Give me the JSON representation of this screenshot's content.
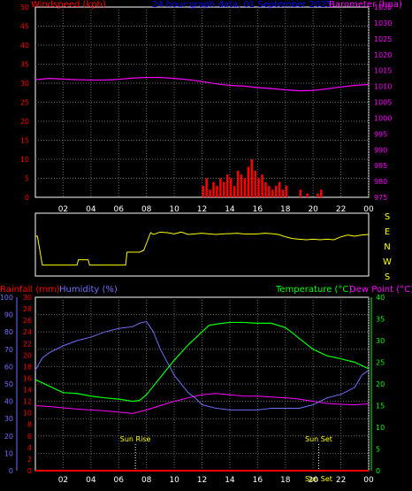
{
  "colors": {
    "wind": "#ff0000",
    "barometer": "#ff00ff",
    "title": "#0000ff",
    "direction": "#ffff00",
    "rain": "#ff0000",
    "humidity": "#7070ff",
    "temperature": "#00ff00",
    "dewpoint": "#ff00ff",
    "sun": "#ffffff",
    "axis": "#ffffff",
    "grid": "#6a6a6a"
  },
  "chart_data": [
    {
      "type": "line",
      "id": "wind_pressure",
      "title": "24 hour graph data, 01 September 2025",
      "ylabel_left": "Windspeed (kph)",
      "ylabel_right": "Barometer (hpa)",
      "x_ticks": [
        "02",
        "04",
        "06",
        "08",
        "10",
        "12",
        "14",
        "16",
        "18",
        "20",
        "22",
        "00"
      ],
      "y_left_ticks": [
        "0",
        "5",
        "10",
        "15",
        "20",
        "25",
        "30",
        "35",
        "40",
        "45",
        "50"
      ],
      "y_right_ticks": [
        "975",
        "980",
        "985",
        "990",
        "995",
        "1000",
        "1005",
        "1010",
        "1015",
        "1020",
        "1025",
        "1030",
        "1035"
      ],
      "ylim_left": [
        0,
        50
      ],
      "ylim_right": [
        975,
        1035
      ],
      "grid": true,
      "series": [
        {
          "name": "Barometer",
          "axis": "right",
          "x": [
            0,
            1,
            2,
            3,
            4,
            5,
            6,
            7,
            8,
            9,
            10,
            11,
            12,
            13,
            14,
            15,
            16,
            17,
            18,
            19,
            20,
            21,
            22,
            23,
            24
          ],
          "values": [
            1012.1,
            1012.5,
            1012.3,
            1012.1,
            1012.0,
            1012.0,
            1012.2,
            1012.6,
            1012.8,
            1012.8,
            1012.5,
            1012.1,
            1011.5,
            1010.8,
            1010.3,
            1010.1,
            1009.6,
            1009.3,
            1008.9,
            1008.6,
            1008.7,
            1009.2,
            1009.8,
            1010.3,
            1010.6
          ]
        },
        {
          "name": "Windspeed",
          "axis": "left",
          "type": "bar",
          "x": [
            12.0,
            12.25,
            12.5,
            12.75,
            13.0,
            13.25,
            13.5,
            13.75,
            14.0,
            14.25,
            14.5,
            14.75,
            15.0,
            15.25,
            15.5,
            15.75,
            16.0,
            16.25,
            16.5,
            16.75,
            17.0,
            17.25,
            17.5,
            17.75,
            18.0,
            19.0,
            19.5,
            20.25,
            20.5
          ],
          "values": [
            3,
            5,
            2,
            4,
            3,
            5,
            4,
            6,
            5,
            3,
            7,
            6,
            5,
            8,
            10,
            7,
            5,
            6,
            4,
            3,
            2,
            3,
            4,
            2,
            3,
            2,
            1,
            1,
            2
          ]
        }
      ]
    },
    {
      "type": "line",
      "id": "wind_direction",
      "y_ticks": [
        "S",
        "E",
        "N",
        "W",
        "S"
      ],
      "x_ticks": [],
      "series": [
        {
          "name": "Wind direction",
          "x": [
            0,
            0.15,
            0.5,
            3.0,
            3.1,
            3.8,
            3.9,
            6.5,
            6.6,
            7.5,
            7.8,
            8.0,
            8.3,
            8.5,
            9.0,
            9.5,
            10.0,
            10.5,
            11.0,
            11.5,
            12.0,
            12.5,
            13.0,
            13.5,
            14.0,
            14.5,
            15.0,
            15.5,
            16.0,
            16.5,
            17.0,
            17.5,
            18.0,
            18.5,
            19.0,
            19.5,
            20.0,
            20.5,
            21.0,
            21.5,
            22.0,
            22.5,
            23.0,
            23.5,
            24.0
          ],
          "values": [
            90,
            90,
            335,
            335,
            290,
            290,
            335,
            335,
            225,
            225,
            210,
            150,
            60,
            75,
            55,
            60,
            70,
            55,
            75,
            70,
            65,
            70,
            75,
            70,
            68,
            65,
            70,
            72,
            70,
            65,
            68,
            75,
            95,
            110,
            115,
            120,
            115,
            120,
            115,
            120,
            95,
            80,
            90,
            80,
            75
          ]
        }
      ]
    },
    {
      "type": "line",
      "id": "temp_humidity",
      "ylabel_rain": "Rainfall (mm)",
      "ylabel_humidity": "Humidity (%)",
      "ylabel_right": "Temperature (°C)",
      "ylabel_dew": "Dew Point (°C)",
      "x_ticks": [
        "02",
        "04",
        "06",
        "08",
        "10",
        "12",
        "14",
        "16",
        "18",
        "20",
        "22",
        "00"
      ],
      "humidity_ticks": [
        "0",
        "10",
        "20",
        "30",
        "40",
        "50",
        "60",
        "70",
        "80",
        "90",
        "100"
      ],
      "rain_ticks": [
        "0",
        "2",
        "4",
        "6",
        "8",
        "10",
        "12",
        "14",
        "16",
        "18",
        "20",
        "22",
        "24",
        "26",
        "28",
        "30"
      ],
      "temp_ticks": [
        "0",
        "5",
        "10",
        "15",
        "20",
        "25",
        "30",
        "35",
        "40"
      ],
      "humidity_lim": [
        0,
        100
      ],
      "temp_lim": [
        0,
        40
      ],
      "annotations": {
        "sunrise": "Sun Rise",
        "sunset": "Sun Set",
        "sunrise_x": 7.2,
        "sunset_x": 20.4
      },
      "grid": true,
      "series": [
        {
          "name": "Humidity",
          "axis": "humidity",
          "x": [
            0,
            0.5,
            1,
            2,
            3,
            4,
            5,
            6,
            7,
            7.5,
            8,
            8.5,
            9,
            10,
            11,
            11.5,
            12,
            13,
            14,
            15,
            16,
            17,
            18,
            19,
            20,
            21,
            22,
            23,
            23.5,
            24
          ],
          "values": [
            58,
            65,
            68,
            72,
            75,
            77,
            80,
            82,
            83,
            85,
            86,
            80,
            70,
            55,
            45,
            42,
            38,
            36,
            35,
            35,
            35,
            36,
            36,
            36,
            38,
            42,
            44,
            48,
            55,
            58
          ]
        },
        {
          "name": "Temperature",
          "axis": "temp",
          "x": [
            0,
            1,
            2,
            3,
            4,
            5,
            6,
            7,
            7.5,
            8,
            9,
            10,
            11,
            12,
            12.5,
            13,
            14,
            15,
            16,
            17,
            18,
            18.5,
            19,
            20,
            21,
            22,
            23,
            24
          ],
          "values": [
            21,
            19.5,
            18,
            17.8,
            17.2,
            16.8,
            16.5,
            16.0,
            16.2,
            17.5,
            21.5,
            25.5,
            29.0,
            32.0,
            33.5,
            33.8,
            34.2,
            34.2,
            34.0,
            34.0,
            33.0,
            31.8,
            30.5,
            28.0,
            26.5,
            25.8,
            25.0,
            23.5
          ]
        },
        {
          "name": "Dew Point",
          "axis": "temp",
          "x": [
            0,
            1,
            2,
            3,
            4,
            5,
            6,
            7,
            8,
            9,
            10,
            11,
            12,
            13,
            14,
            15,
            16,
            17,
            18,
            19,
            20,
            21,
            22,
            23,
            24
          ],
          "values": [
            15.0,
            14.8,
            14.5,
            14.2,
            14.0,
            13.8,
            13.5,
            13.2,
            14.0,
            15.0,
            16.0,
            16.8,
            17.5,
            17.8,
            17.5,
            17.2,
            17.2,
            17.0,
            16.8,
            16.5,
            16.0,
            15.5,
            15.3,
            15.2,
            15.4
          ]
        },
        {
          "name": "Rainfall",
          "axis": "rain",
          "x": [
            0,
            24
          ],
          "values": [
            0,
            0
          ]
        }
      ]
    }
  ]
}
